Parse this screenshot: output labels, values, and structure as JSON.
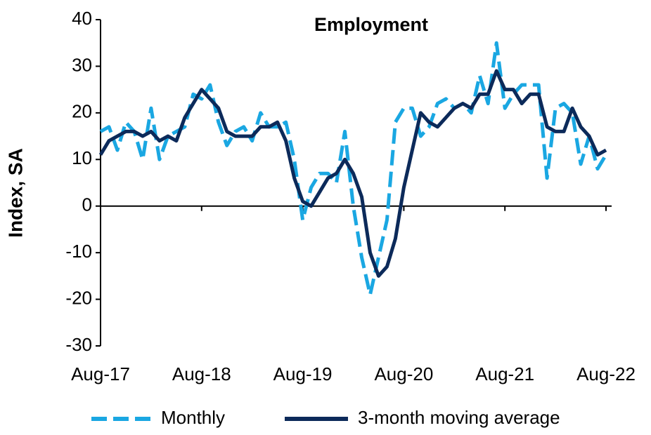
{
  "chart_data": {
    "type": "line",
    "title": "Employment",
    "y_label": "Index, SA",
    "categories": [
      "Aug-17",
      null,
      null,
      null,
      null,
      null,
      null,
      null,
      null,
      null,
      null,
      null,
      "Aug-18",
      null,
      null,
      null,
      null,
      null,
      null,
      null,
      null,
      null,
      null,
      null,
      "Aug-19",
      null,
      null,
      null,
      null,
      null,
      null,
      null,
      null,
      null,
      null,
      null,
      "Aug-20",
      null,
      null,
      null,
      null,
      null,
      null,
      null,
      null,
      null,
      null,
      null,
      "Aug-21",
      null,
      null,
      null,
      null,
      null,
      null,
      null,
      null,
      null,
      null,
      null,
      "Aug-22"
    ],
    "series": [
      {
        "name": "Monthly",
        "color": "#1aa7e2",
        "dash": true,
        "values": [
          16,
          17,
          12,
          18,
          16,
          10,
          21,
          10,
          15,
          16,
          17,
          24,
          23,
          26,
          18,
          13,
          16,
          17,
          14,
          20,
          17,
          17,
          18,
          10,
          -3,
          4,
          7,
          7,
          5,
          16,
          0,
          -11,
          -19,
          -11,
          -3,
          18,
          21,
          21,
          15,
          17,
          22,
          23,
          21,
          22,
          20,
          28,
          22,
          35,
          21,
          24,
          26,
          26,
          26,
          6,
          21,
          22,
          20,
          9,
          15,
          8,
          11
        ]
      },
      {
        "name": "3-month moving average",
        "color": "#0c2a5a",
        "dash": false,
        "values": [
          11,
          14,
          15,
          16,
          16,
          15,
          16,
          14,
          15,
          14,
          19,
          22,
          25,
          23,
          21,
          16,
          15,
          15,
          15,
          17,
          17,
          18,
          14,
          6,
          1,
          0,
          3,
          6,
          7,
          10,
          7,
          2,
          -10,
          -15,
          -13,
          -7,
          4,
          12,
          20,
          18,
          17,
          19,
          21,
          22,
          21,
          24,
          24,
          29,
          25,
          25,
          22,
          24,
          24,
          17,
          16,
          16,
          21,
          17,
          15,
          11,
          12
        ]
      }
    ],
    "ylim": [
      -30,
      40
    ],
    "yticks": [
      -30,
      -20,
      -10,
      0,
      10,
      20,
      30,
      40
    ],
    "legend": "bottom"
  }
}
